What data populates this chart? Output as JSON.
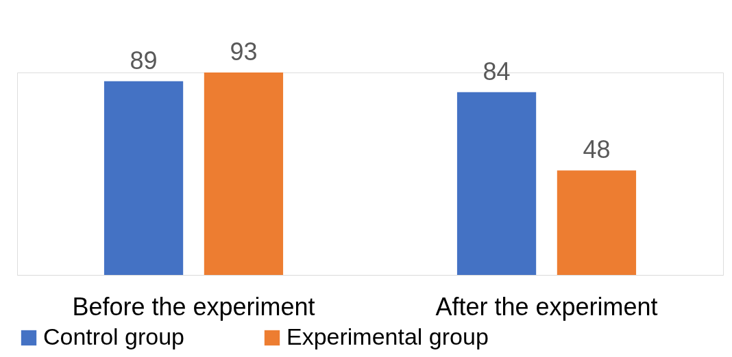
{
  "chart_data": {
    "type": "bar",
    "categories": [
      "Before the experiment",
      "After the experiment"
    ],
    "series": [
      {
        "name": "Control group",
        "color": "#4472c4",
        "values": [
          89,
          84
        ]
      },
      {
        "name": "Experimental group",
        "color": "#ed7d31",
        "values": [
          93,
          48
        ]
      }
    ],
    "data_labels": true,
    "legend": "bottom",
    "grid": false
  }
}
